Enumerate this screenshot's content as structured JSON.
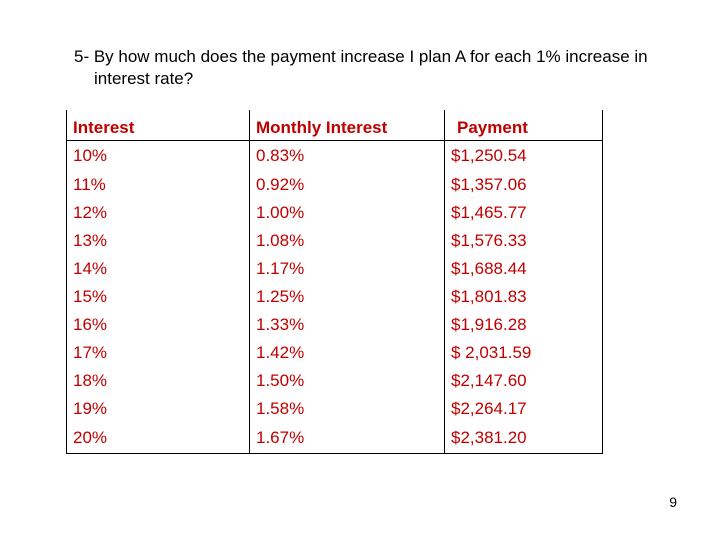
{
  "question": {
    "line1": "5- By how much does the payment increase I plan A for each 1% increase in",
    "line2": "interest rate?"
  },
  "table": {
    "headers": [
      "Interest",
      "Monthly Interest",
      "Payment"
    ],
    "rows": [
      [
        "10%",
        "0.83%",
        "$1,250.54"
      ],
      [
        "11%",
        "0.92%",
        "$1,357.06"
      ],
      [
        "12%",
        "1.00%",
        "$1,465.77"
      ],
      [
        "13%",
        "1.08%",
        "$1,576.33"
      ],
      [
        "14%",
        "1.17%",
        "$1,688.44"
      ],
      [
        "15%",
        "1.25%",
        "$1,801.83"
      ],
      [
        "16%",
        "1.33%",
        "$1,916.28"
      ],
      [
        "17%",
        "1.42%",
        "$ 2,031.59"
      ],
      [
        "18%",
        "1.50%",
        "$2,147.60"
      ],
      [
        "19%",
        "1.58%",
        "$2,264.17"
      ],
      [
        "20%",
        "1.67%",
        "$2,381.20"
      ]
    ],
    "text_color": "#c00000"
  },
  "page_number": "9"
}
